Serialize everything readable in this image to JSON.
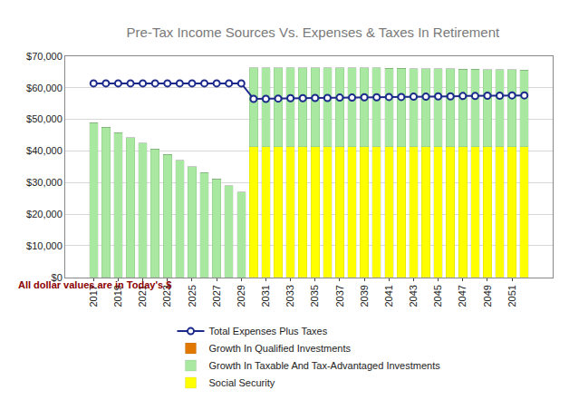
{
  "chart_data": {
    "type": "bar",
    "title": "Pre-Tax Income Sources Vs. Expenses & Taxes In Retirement",
    "subtitle": "All dollar values are in Today's $",
    "categories": [
      "2017",
      null,
      "2019",
      null,
      "2021",
      null,
      "2023",
      null,
      "2025",
      null,
      "2027",
      null,
      "2029",
      null,
      "2031",
      null,
      "2033",
      null,
      "2035",
      null,
      "2037",
      null,
      "2039",
      null,
      "2041",
      null,
      "2043",
      null,
      "2045",
      null,
      "2047",
      null,
      "2049",
      null,
      "2051",
      null
    ],
    "stacked": true,
    "grid": true,
    "legend": "bottom",
    "ylim": [
      0,
      70000
    ],
    "yticks": [
      {
        "value": 0,
        "label": "$0"
      },
      {
        "value": 10000,
        "label": "$10,000"
      },
      {
        "value": 20000,
        "label": "$20,000"
      },
      {
        "value": 30000,
        "label": "$30,000"
      },
      {
        "value": 40000,
        "label": "$40,000"
      },
      {
        "value": 50000,
        "label": "$50,000"
      },
      {
        "value": 60000,
        "label": "$60,000"
      },
      {
        "value": 70000,
        "label": "$70,000"
      }
    ],
    "series": [
      {
        "name": "Social Security",
        "type": "bar",
        "color": "#ffff00",
        "values": [
          0,
          0,
          0,
          0,
          0,
          0,
          0,
          0,
          0,
          0,
          0,
          0,
          0,
          41300,
          41300,
          41300,
          41300,
          41300,
          41300,
          41300,
          41300,
          41300,
          41300,
          41300,
          41300,
          41300,
          41300,
          41300,
          41300,
          41300,
          41300,
          41300,
          41300,
          41300,
          41300,
          41300
        ]
      },
      {
        "name": "Growth In Taxable And Tax-Advantaged Investments",
        "type": "bar",
        "color": "#a8e8a0",
        "values": [
          49000,
          47500,
          45800,
          44200,
          42500,
          40700,
          38900,
          37000,
          35000,
          33100,
          31100,
          29000,
          27000,
          25000,
          25000,
          25000,
          25000,
          25000,
          25000,
          25000,
          25000,
          25000,
          25000,
          25000,
          24900,
          24900,
          24800,
          24800,
          24700,
          24700,
          24600,
          24600,
          24500,
          24500,
          24400,
          24300
        ]
      },
      {
        "name": "Growth In Qualified Investments",
        "type": "bar",
        "color": "#e07800",
        "values": [
          0,
          0,
          0,
          0,
          0,
          0,
          0,
          0,
          0,
          0,
          0,
          0,
          0,
          0,
          0,
          0,
          0,
          0,
          0,
          0,
          0,
          0,
          0,
          0,
          0,
          0,
          0,
          0,
          0,
          0,
          0,
          0,
          0,
          0,
          0,
          0
        ]
      },
      {
        "name": "Total Expenses Plus Taxes",
        "type": "line",
        "color": "#1c2a8c",
        "marker": "circle",
        "line_style": "solid",
        "values": [
          61400,
          61400,
          61400,
          61400,
          61400,
          61400,
          61400,
          61400,
          61400,
          61400,
          61400,
          61400,
          61400,
          56500,
          56500,
          56600,
          56700,
          56700,
          56800,
          56800,
          56900,
          56900,
          57000,
          57000,
          57100,
          57100,
          57200,
          57200,
          57300,
          57300,
          57400,
          57400,
          57500,
          57500,
          57600,
          57600
        ]
      }
    ]
  }
}
